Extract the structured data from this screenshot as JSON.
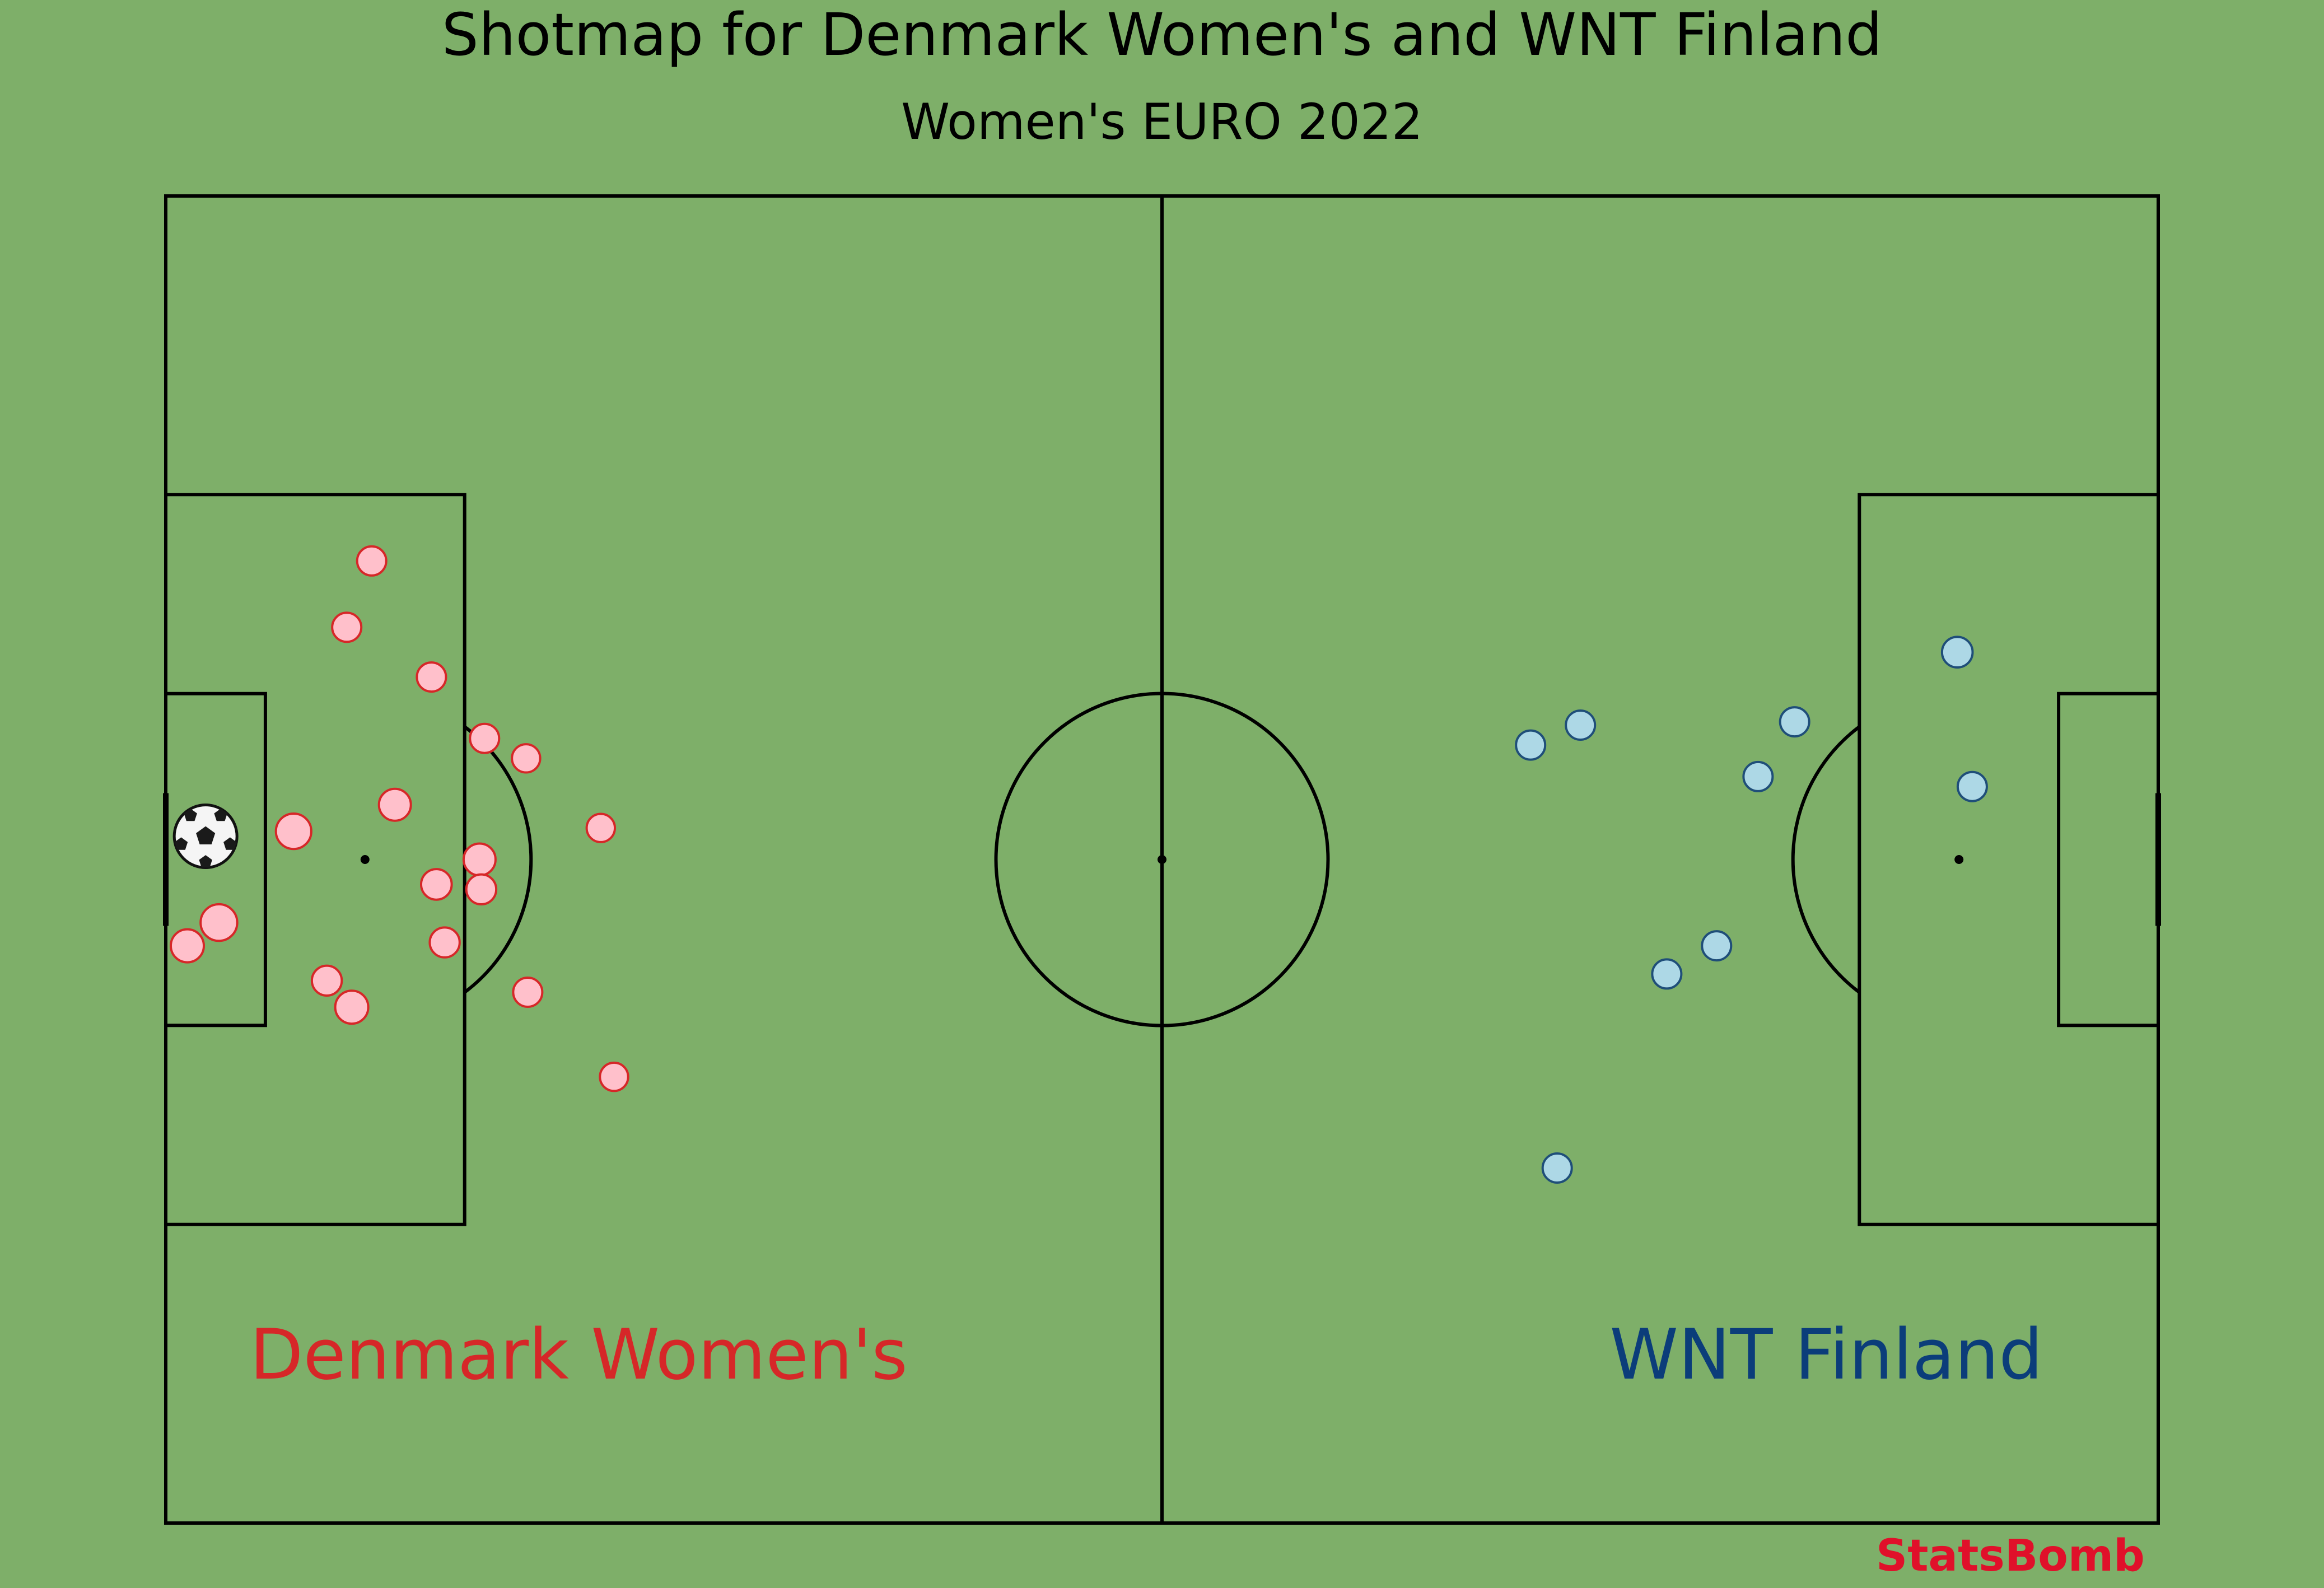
{
  "chart_data": {
    "type": "scatter",
    "title": "Shotmap for Denmark Women's and WNT Finland",
    "subtitle": "Women's EURO 2022",
    "pitch": {
      "length": 120,
      "width": 80,
      "grid": false
    },
    "colors": {
      "background": "#7eaf69",
      "lines": "#000000",
      "denmark_fill": "#ffc0cb",
      "denmark_edge": "#d62728",
      "finland_fill": "#add8e6",
      "finland_edge": "#1f4e79",
      "denmark_label": "#d62728",
      "finland_label": "#0b3d7a",
      "brand": "#e0102a"
    },
    "series": [
      {
        "name": "Denmark Women's",
        "side": "left",
        "points": [
          {
            "x": 12.4,
            "y": 22.0,
            "xg": 0.04,
            "goal": false
          },
          {
            "x": 10.9,
            "y": 26.0,
            "xg": 0.04,
            "goal": false
          },
          {
            "x": 16.0,
            "y": 29.0,
            "xg": 0.04,
            "goal": false
          },
          {
            "x": 19.2,
            "y": 32.7,
            "xg": 0.04,
            "goal": false
          },
          {
            "x": 21.7,
            "y": 33.9,
            "xg": 0.03,
            "goal": false
          },
          {
            "x": 13.8,
            "y": 36.7,
            "xg": 0.08,
            "goal": false
          },
          {
            "x": 7.7,
            "y": 38.3,
            "xg": 0.15,
            "goal": false
          },
          {
            "x": 2.4,
            "y": 38.6,
            "xg": 0.5,
            "goal": true
          },
          {
            "x": 26.2,
            "y": 38.1,
            "xg": 0.03,
            "goal": false
          },
          {
            "x": 18.9,
            "y": 40.0,
            "xg": 0.08,
            "goal": false
          },
          {
            "x": 16.3,
            "y": 41.5,
            "xg": 0.06,
            "goal": false
          },
          {
            "x": 19.0,
            "y": 41.8,
            "xg": 0.05,
            "goal": false
          },
          {
            "x": 3.2,
            "y": 43.8,
            "xg": 0.18,
            "goal": false
          },
          {
            "x": 1.3,
            "y": 45.2,
            "xg": 0.1,
            "goal": false
          },
          {
            "x": 16.8,
            "y": 45.0,
            "xg": 0.05,
            "goal": false
          },
          {
            "x": 9.7,
            "y": 47.3,
            "xg": 0.05,
            "goal": false
          },
          {
            "x": 11.2,
            "y": 48.9,
            "xg": 0.1,
            "goal": false
          },
          {
            "x": 21.8,
            "y": 48.0,
            "xg": 0.04,
            "goal": false
          },
          {
            "x": 27.0,
            "y": 53.1,
            "xg": 0.03,
            "goal": false
          }
        ]
      },
      {
        "name": "WNT Finland",
        "side": "right",
        "points": [
          {
            "x": 107.9,
            "y": 27.5,
            "xg": 0.06,
            "goal": false
          },
          {
            "x": 98.1,
            "y": 31.7,
            "xg": 0.04,
            "goal": false
          },
          {
            "x": 85.2,
            "y": 31.9,
            "xg": 0.04,
            "goal": false
          },
          {
            "x": 82.2,
            "y": 33.1,
            "xg": 0.04,
            "goal": false
          },
          {
            "x": 95.9,
            "y": 35.0,
            "xg": 0.04,
            "goal": false
          },
          {
            "x": 108.8,
            "y": 35.6,
            "xg": 0.04,
            "goal": false
          },
          {
            "x": 93.4,
            "y": 45.2,
            "xg": 0.04,
            "goal": false
          },
          {
            "x": 90.4,
            "y": 46.9,
            "xg": 0.04,
            "goal": false
          },
          {
            "x": 83.8,
            "y": 58.6,
            "xg": 0.04,
            "goal": false
          }
        ]
      }
    ],
    "team_labels": {
      "left": "Denmark Women's",
      "right": "WNT Finland"
    },
    "brand": "StatsBomb"
  }
}
